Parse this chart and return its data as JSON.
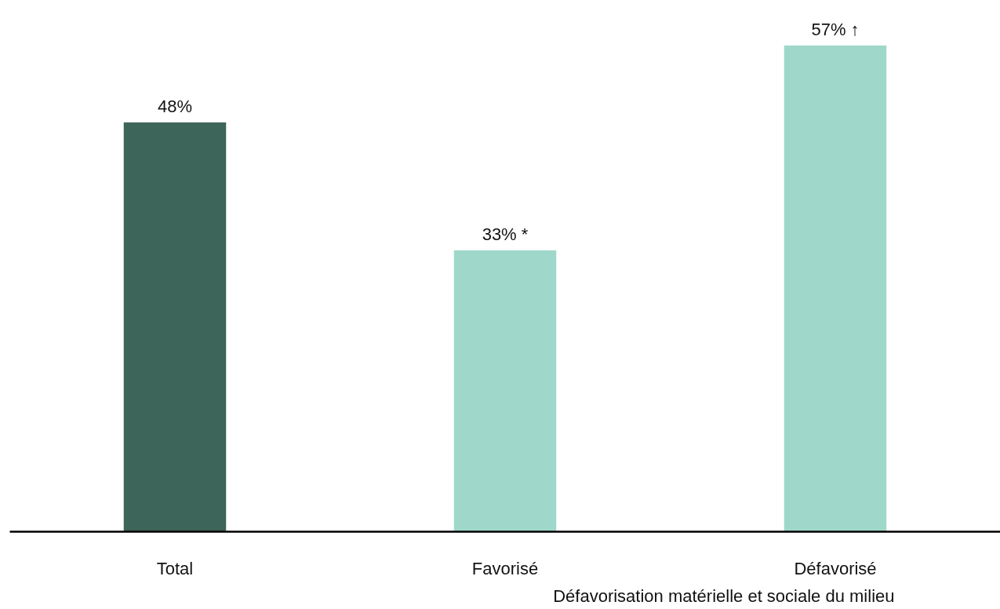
{
  "chart_data": {
    "type": "bar",
    "xlabel": "Défavorisation matérielle et sociale du milieu",
    "categories": [
      "Total",
      "Favorisé",
      "Défavorisé"
    ],
    "values": [
      48,
      33,
      57
    ],
    "colors": [
      "#3d6559",
      "#9fd8ca",
      "#9fd8ca"
    ],
    "value_labels": [
      "48%",
      "33% *",
      "57% ↑"
    ],
    "grid": false,
    "tick_labels": "x"
  }
}
